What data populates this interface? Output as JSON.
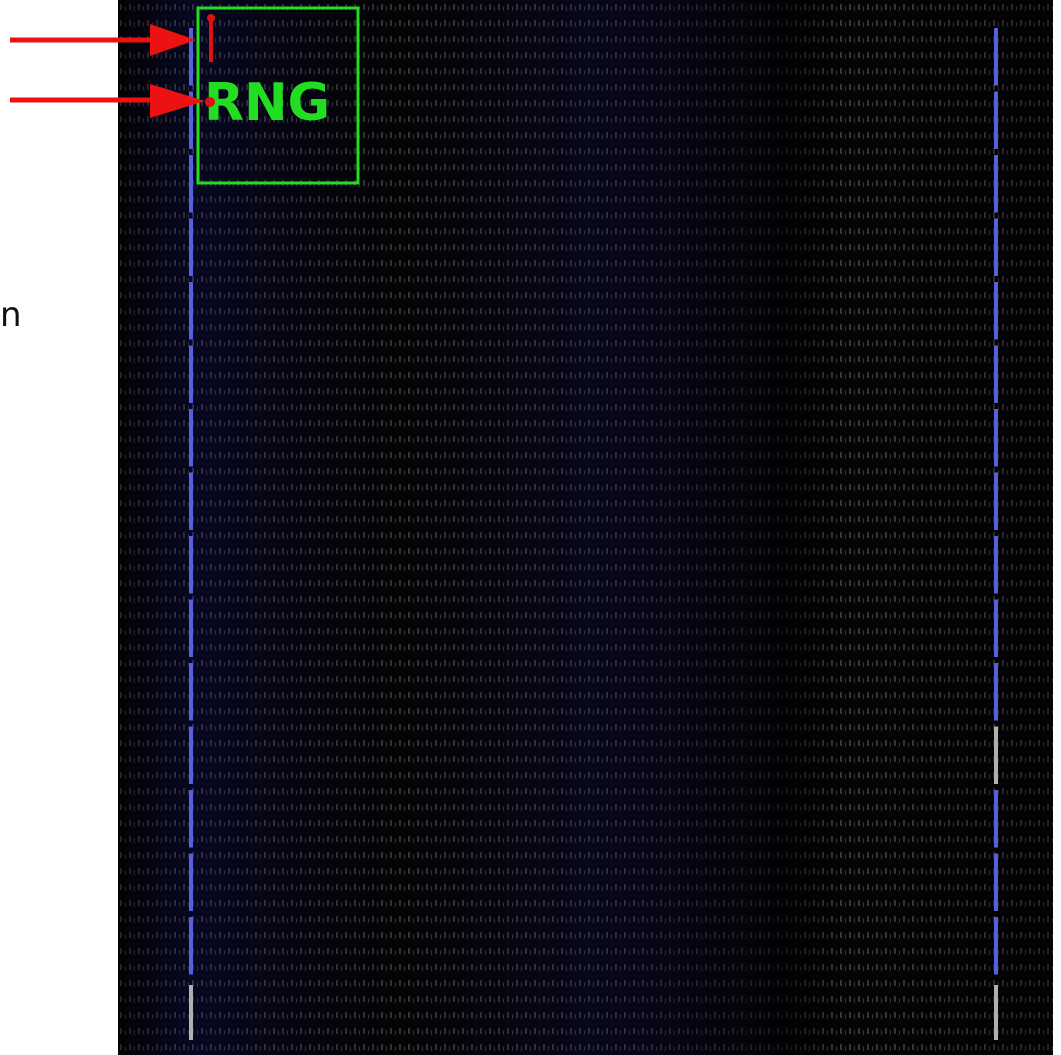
{
  "labels": {
    "box_label": "RNG",
    "side_text": "n"
  }
}
